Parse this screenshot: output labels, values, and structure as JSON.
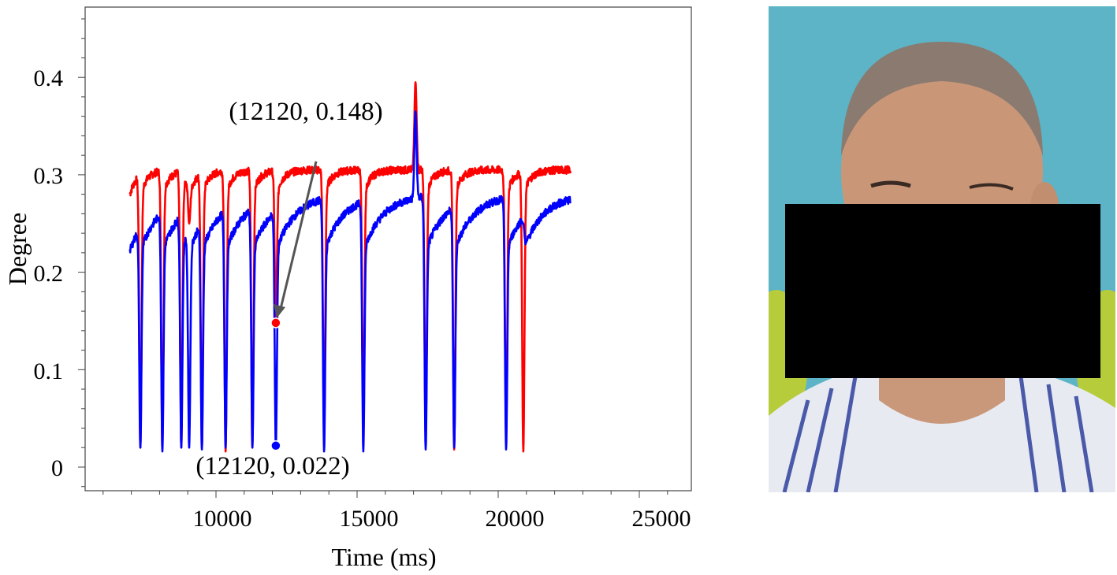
{
  "chart_data": {
    "type": "line",
    "title": "",
    "xlabel": "Time (ms)",
    "ylabel": "Degree",
    "xlim": [
      5400,
      26800
    ],
    "ylim": [
      -0.024,
      0.47
    ],
    "x_ticks": [
      10000,
      15000,
      20000,
      25000
    ],
    "x_tick_labels": [
      "10000",
      "15000",
      "20000",
      "25000"
    ],
    "x_minor_step": 1000,
    "y_ticks": [
      0,
      0.1,
      0.2,
      0.3,
      0.4
    ],
    "y_tick_labels": [
      "0",
      "0.1",
      "0.2",
      "0.3",
      "0.4"
    ],
    "y_minor_step": 0.02,
    "grid": false,
    "x_range_of_data": [
      6950,
      22560
    ],
    "series": [
      {
        "color": "#ff0000",
        "baseline": 0.305,
        "start_value": 0.28
      },
      {
        "color": "#0000ff",
        "baseline": 0.28,
        "start_value": 0.227
      }
    ],
    "blinks": [
      {
        "t": 7320,
        "red_min": 0.02,
        "blue_min": 0.02
      },
      {
        "t": 8100,
        "red_min": 0.02,
        "blue_min": 0.016
      },
      {
        "t": 8770,
        "red_min": 0.02,
        "blue_min": 0.02
      },
      {
        "t": 9050,
        "red_min": 0.25,
        "blue_min": 0.02
      },
      {
        "t": 9500,
        "red_min": 0.02,
        "blue_min": 0.018
      },
      {
        "t": 10340,
        "red_min": 0.016,
        "blue_min": 0.02
      },
      {
        "t": 11290,
        "red_min": 0.02,
        "blue_min": 0.02
      },
      {
        "t": 12120,
        "red_min": 0.148,
        "blue_min": 0.022
      },
      {
        "t": 13830,
        "red_min": 0.035,
        "blue_min": 0.016
      },
      {
        "t": 15220,
        "red_min": 0.045,
        "blue_min": 0.016
      },
      {
        "t": 17430,
        "red_min": 0.03,
        "blue_min": 0.018
      },
      {
        "t": 18440,
        "red_min": 0.018,
        "blue_min": 0.02
      },
      {
        "t": 20280,
        "red_min": 0.03,
        "blue_min": 0.018
      },
      {
        "t": 20890,
        "red_min": 0.016,
        "blue_min": 0.25
      }
    ],
    "spike": {
      "t": 17070,
      "red_peak": 0.395,
      "blue_peak": 0.365
    },
    "annotations": [
      {
        "text": "(12120, 0.148)",
        "x": 12120,
        "y": 0.148,
        "color": "#ff0000"
      },
      {
        "text": "(12120, 0.022)",
        "x": 12120,
        "y": 0.022,
        "color": "#0000ff"
      }
    ]
  },
  "photo": {
    "redaction_color": "#000000",
    "background_color": "#5cb4c6"
  }
}
